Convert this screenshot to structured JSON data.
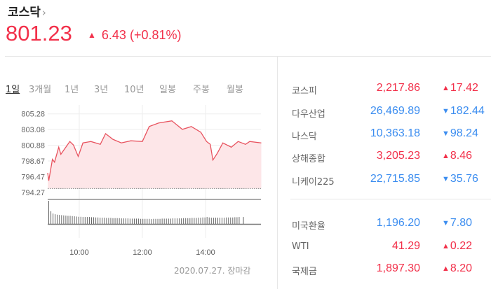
{
  "header": {
    "title": "코스닥",
    "chevron_icon": "chevron-right-icon",
    "price": "801.23",
    "direction": "up",
    "change": "6.43",
    "change_pct": "(+0.81%)",
    "color": "#f2304a"
  },
  "tabs": [
    {
      "label": "1일",
      "active": true
    },
    {
      "label": "3개월"
    },
    {
      "label": "1년"
    },
    {
      "label": "3년"
    },
    {
      "label": "10년"
    },
    {
      "label": "일봉"
    },
    {
      "label": "주봉"
    },
    {
      "label": "월봉"
    }
  ],
  "chart_data": {
    "type": "area",
    "y_ticks": [
      "805.28",
      "803.08",
      "800.88",
      "798.67",
      "796.47",
      "794.27"
    ],
    "ylim": [
      794.27,
      805.28
    ],
    "prev_close": 794.8,
    "x_ticks": [
      "10:00",
      "12:00",
      "14:00"
    ],
    "xlim": [
      "09:00",
      "15:46"
    ],
    "grid": true,
    "line_color": "#e8535f",
    "fill_color": "#fde6e8",
    "series": [
      {
        "x": [
          "09:00",
          "09:02",
          "09:09",
          "09:13",
          "09:21",
          "09:25",
          "09:42",
          "09:49",
          "09:58",
          "10:07",
          "10:22",
          "10:40",
          "10:50",
          "11:04",
          "11:20",
          "11:38",
          "12:00",
          "12:13",
          "12:31",
          "12:56",
          "13:16",
          "13:33",
          "13:51",
          "14:02",
          "14:09",
          "14:14",
          "14:22",
          "14:33",
          "14:49",
          "15:02",
          "15:16",
          "15:24",
          "15:46"
        ],
        "y": [
          797.0,
          795.9,
          798.9,
          798.5,
          800.6,
          799.6,
          801.4,
          800.9,
          799.3,
          801.2,
          801.4,
          801.0,
          802.5,
          801.7,
          801.2,
          801.5,
          801.4,
          803.5,
          804.0,
          804.3,
          803.1,
          803.5,
          802.7,
          801.4,
          801.0,
          798.8,
          799.7,
          801.2,
          800.6,
          801.4,
          801.0,
          801.4,
          801.2
        ]
      }
    ],
    "volume": [
      100,
      55,
      45,
      42,
      40,
      39,
      38,
      37,
      36,
      35,
      35,
      34,
      33,
      32,
      31,
      31,
      30,
      30,
      30,
      30,
      29,
      29,
      28,
      28,
      27,
      27,
      27,
      26,
      26,
      26,
      25,
      25,
      25,
      25,
      24,
      24,
      24,
      24,
      23,
      23,
      23,
      23,
      23,
      22,
      22,
      22,
      22,
      22,
      21,
      22,
      22,
      22,
      22,
      23,
      23,
      23,
      23,
      23,
      24,
      24,
      24,
      24,
      24,
      25,
      25,
      25,
      25,
      26,
      26,
      26,
      27,
      27,
      28,
      28,
      30,
      28,
      27,
      27,
      27,
      27,
      27,
      27,
      27,
      28,
      28,
      28,
      28,
      29,
      29,
      30,
      0,
      30
    ]
  },
  "footer": {
    "date": "2020.07.27. 장마감"
  },
  "indices": [
    {
      "name": "코스피",
      "value": "2,217.86",
      "direction": "up",
      "change": "17.42"
    },
    {
      "name": "다우산업",
      "value": "26,469.89",
      "direction": "down",
      "change": "182.44"
    },
    {
      "name": "나스닥",
      "value": "10,363.18",
      "direction": "down",
      "change": "98.24"
    },
    {
      "name": "상해종합",
      "value": "3,205.23",
      "direction": "up",
      "change": "8.46"
    },
    {
      "name": "니케이225",
      "value": "22,715.85",
      "direction": "down",
      "change": "35.76"
    }
  ],
  "markets": [
    {
      "name": "미국환율",
      "value": "1,196.20",
      "direction": "down",
      "change": "7.80"
    },
    {
      "name": "WTI",
      "value": "41.29",
      "direction": "up",
      "change": "0.22"
    },
    {
      "name": "국제금",
      "value": "1,897.30",
      "direction": "up",
      "change": "8.20"
    }
  ],
  "colors": {
    "up": "#f2304a",
    "down": "#3b8df0"
  }
}
